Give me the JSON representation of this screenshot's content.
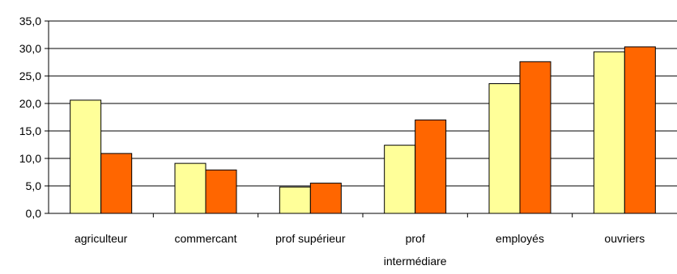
{
  "chart_data": {
    "type": "bar",
    "title": "",
    "xlabel": "",
    "ylabel": "",
    "categories": [
      [
        "agriculteur"
      ],
      [
        "commercant"
      ],
      [
        "prof supérieur"
      ],
      [
        "prof",
        "intermédiare"
      ],
      [
        "employés"
      ],
      [
        "ouvriers"
      ]
    ],
    "series": [
      {
        "values": [
          20.6,
          9.1,
          4.8,
          12.4,
          23.6,
          29.4
        ],
        "color": "#ffff99"
      },
      {
        "values": [
          10.9,
          7.9,
          5.5,
          17.0,
          27.6,
          30.3
        ],
        "color": "#ff6600"
      }
    ],
    "ylim": [
      0,
      35
    ],
    "yticks": [
      "0,0",
      "5,0",
      "10,0",
      "15,0",
      "20,0",
      "25,0",
      "30,0",
      "35,0"
    ],
    "grid": true,
    "legend": "none"
  }
}
